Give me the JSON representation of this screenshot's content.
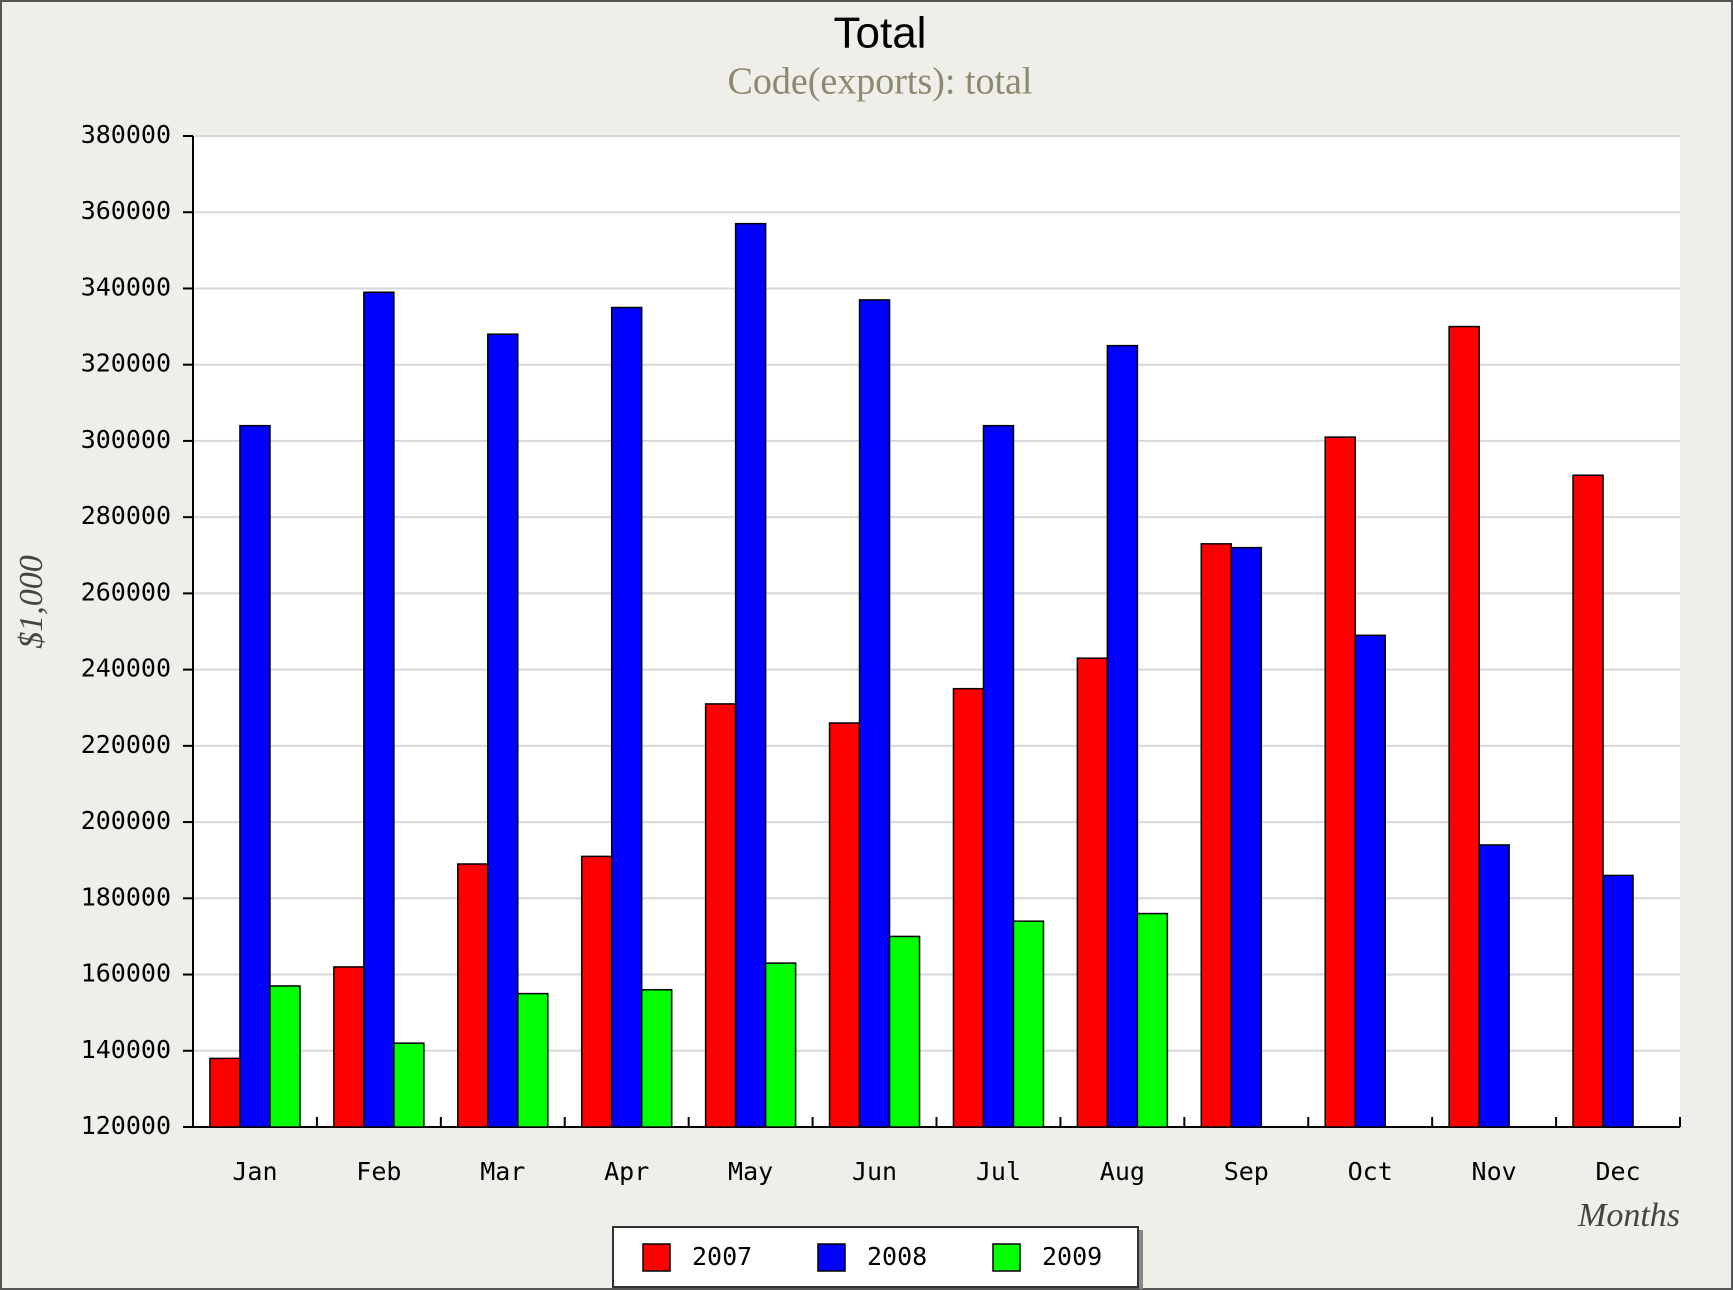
{
  "chart_data": {
    "type": "bar",
    "title": "Total",
    "subtitle": "Code(exports): total",
    "y_label": "$1,000",
    "x_label": "Months",
    "categories": [
      "Jan",
      "Feb",
      "Mar",
      "Apr",
      "May",
      "Jun",
      "Jul",
      "Aug",
      "Sep",
      "Oct",
      "Nov",
      "Dec"
    ],
    "series": [
      {
        "name": "2007",
        "color": "#ff0000",
        "values": [
          138000,
          162000,
          189000,
          191000,
          231000,
          226000,
          235000,
          243000,
          273000,
          301000,
          330000,
          291000
        ]
      },
      {
        "name": "2008",
        "color": "#0000ff",
        "values": [
          304000,
          339000,
          328000,
          335000,
          357000,
          337000,
          304000,
          325000,
          272000,
          249000,
          194000,
          186000
        ]
      },
      {
        "name": "2009",
        "color": "#00ff00",
        "values": [
          157000,
          142000,
          155000,
          156000,
          163000,
          170000,
          174000,
          176000,
          null,
          null,
          null,
          null
        ]
      }
    ],
    "ylim": [
      120000,
      380000
    ],
    "yticks": [
      120000,
      140000,
      160000,
      180000,
      200000,
      220000,
      240000,
      260000,
      280000,
      300000,
      320000,
      340000,
      360000,
      380000
    ],
    "grid": true,
    "legend": "bottom"
  }
}
